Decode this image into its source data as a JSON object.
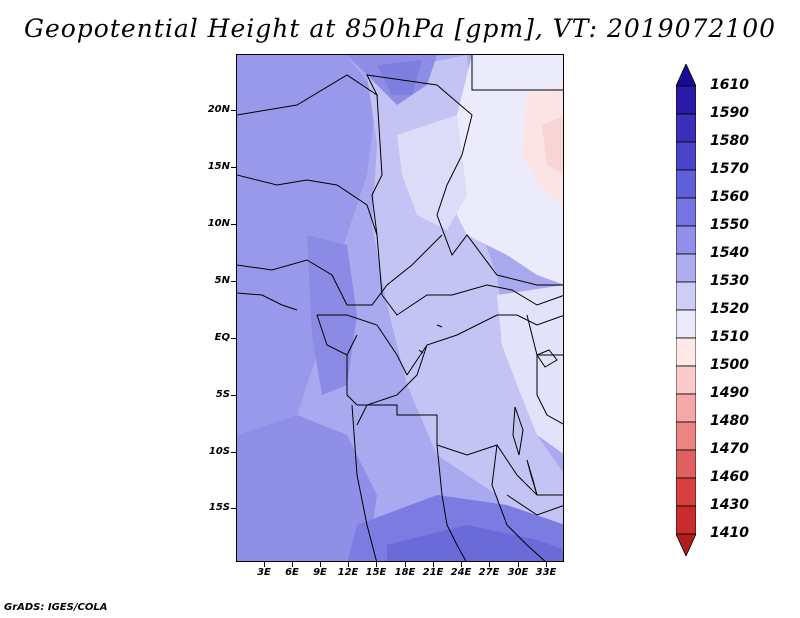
{
  "title": "Geopotential Height at 850hPa [gpm], VT: 2019072100",
  "credit": "GrADS: IGES/COLA",
  "y_ticks": [
    "20N",
    "15N",
    "10N",
    "5N",
    "EQ",
    "5S",
    "10S",
    "15S"
  ],
  "x_ticks": [
    "3E",
    "6E",
    "9E",
    "12E",
    "15E",
    "18E",
    "21E",
    "24E",
    "27E",
    "30E",
    "33E"
  ],
  "colorbar": {
    "levels": [
      "1610",
      "1590",
      "1580",
      "1570",
      "1560",
      "1550",
      "1540",
      "1530",
      "1520",
      "1510",
      "1500",
      "1490",
      "1480",
      "1470",
      "1460",
      "1430",
      "1410"
    ],
    "colors": [
      "#1a0a9a",
      "#2a1aa8",
      "#3b2fb8",
      "#4c44c8",
      "#6060d8",
      "#7575e2",
      "#9090ea",
      "#adadf0",
      "#cdcdf6",
      "#eaeafc",
      "#ffe8e8",
      "#fccaca",
      "#f4a8a8",
      "#ec8484",
      "#e06060",
      "#d84040",
      "#c82c2c",
      "#b01c1c"
    ]
  },
  "map": {
    "type": "filled-contour",
    "variable": "Geopotential Height at 850hPa",
    "units": "gpm",
    "valid_time": "2019072100"
  }
}
